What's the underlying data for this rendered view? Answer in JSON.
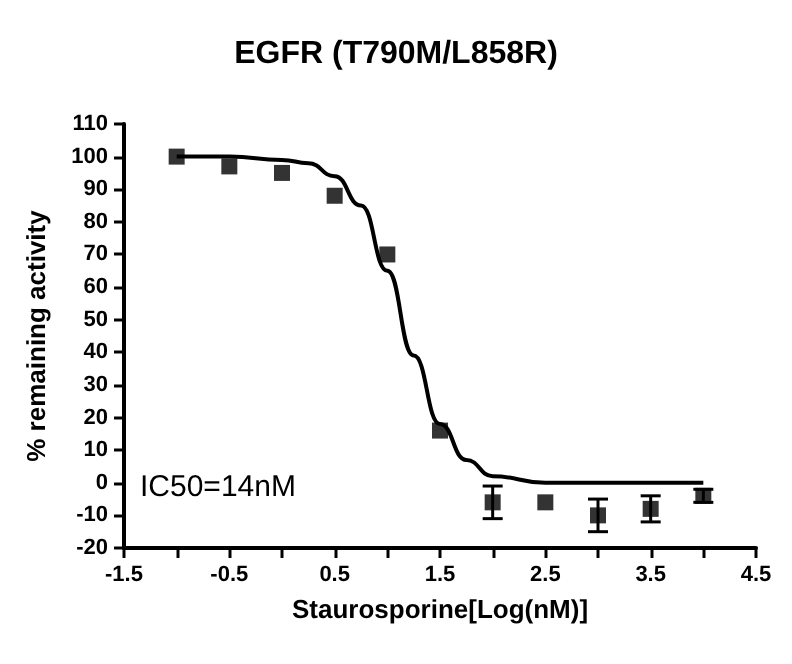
{
  "chart_data": {
    "type": "scatter",
    "title": "EGFR (T790M/L858R)",
    "xlabel": "Staurosporine[Log(nM)]",
    "ylabel": "% remaining activity",
    "annotations": [
      "IC50=14nM"
    ],
    "xlim": [
      -1.5,
      4.5
    ],
    "xticks": [
      -1.5,
      {
        "value": -1,
        "label": null
      },
      -0.5,
      {
        "value": 0,
        "label": null
      },
      0.5,
      {
        "value": 1,
        "label": null
      },
      1.5,
      {
        "value": 2,
        "label": null
      },
      2.5,
      {
        "value": 3,
        "label": null
      },
      3.5,
      {
        "value": 4,
        "label": null
      },
      4.5
    ],
    "ylim": [
      -20,
      110
    ],
    "yticks": [
      -20,
      -10,
      0,
      10,
      20,
      30,
      40,
      50,
      60,
      70,
      80,
      90,
      100,
      110
    ],
    "grid": false,
    "marker": "square",
    "series": [
      {
        "color": "#000000",
        "x": [
          -1,
          -0.5,
          0,
          0.5,
          1,
          1.5,
          2,
          2.5,
          3,
          3.5,
          4
        ],
        "values": [
          100,
          97,
          95,
          88,
          70,
          16,
          -6,
          -6,
          -10,
          -8,
          -4
        ],
        "errors": [
          null,
          null,
          null,
          null,
          null,
          null,
          5,
          null,
          5,
          4,
          2
        ]
      },
      {
        "type": "line",
        "color": "#000000",
        "marker": "none",
        "line_style": "solid",
        "x": [
          -1,
          -0.5,
          0,
          0.25,
          0.5,
          0.75,
          1,
          1.25,
          1.5,
          1.75,
          2,
          2.5,
          3,
          4
        ],
        "values": [
          100,
          100,
          99,
          98,
          94,
          85,
          65,
          39,
          18,
          7,
          2,
          0,
          0,
          0
        ]
      }
    ]
  }
}
